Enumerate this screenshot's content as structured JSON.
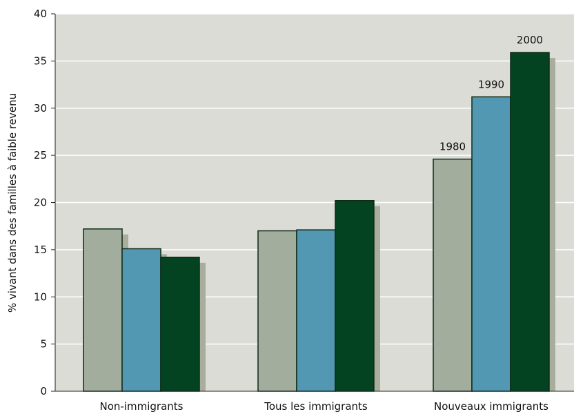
{
  "chart_data": {
    "type": "bar",
    "categories": [
      "Non-immigrants",
      "Tous les immigrants",
      "Nouveaux immigrants"
    ],
    "series": [
      {
        "name": "1980",
        "values": [
          17.2,
          17.0,
          24.6
        ]
      },
      {
        "name": "1990",
        "values": [
          15.1,
          17.1,
          31.2
        ]
      },
      {
        "name": "2000",
        "values": [
          14.2,
          20.2,
          35.9
        ]
      }
    ],
    "ylabel": "% vivant dans des familles à faible revenu",
    "xlabel": "",
    "ylim": [
      0,
      40
    ],
    "yticks": [
      0,
      5,
      10,
      15,
      20,
      25,
      30,
      35,
      40
    ],
    "grid": true,
    "legend": "series names labelled above the last group's bars",
    "colors": {
      "plot_background": "#dcdcd7",
      "gridline": "#ffffff",
      "shadow": "#a8ad9c",
      "bar_outline": "#0b2a16",
      "series": [
        "#a3ad9e",
        "#5298b2",
        "#034322"
      ]
    }
  }
}
